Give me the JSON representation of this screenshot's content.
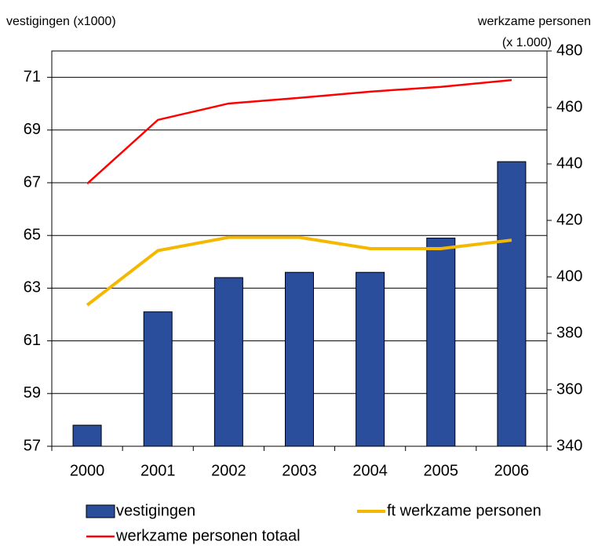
{
  "chart_data": {
    "type": "bar_line",
    "ylabel": "vestigingen (x1000)",
    "y2label": [
      "werkzame personen",
      "(x 1.000)"
    ],
    "categories": [
      "2000",
      "2001",
      "2002",
      "2003",
      "2004",
      "2005",
      "2006"
    ],
    "series": [
      {
        "name": "vestigingen",
        "type": "bar",
        "color": "#2a4d9c",
        "values": [
          57.8,
          62.1,
          63.4,
          63.6,
          63.6,
          64.9,
          67.8
        ]
      },
      {
        "name": "ft werkzame personen",
        "type": "line",
        "axis": "y2",
        "color": "#f5b800",
        "values": [
          390,
          409.3,
          414,
          414,
          410,
          410,
          413
        ]
      },
      {
        "name": "werkzame personen totaal",
        "type": "line",
        "axis": "y2",
        "color": "#ff0000",
        "values": [
          433,
          455.6,
          461.4,
          463.4,
          465.6,
          467.3,
          469.7
        ]
      }
    ],
    "ylim": [
      57,
      72
    ],
    "yticks": [
      57,
      59,
      61,
      63,
      65,
      67,
      69,
      71
    ],
    "y2lim": [
      340,
      480
    ],
    "y2ticks": [
      340,
      360,
      380,
      400,
      420,
      440,
      460,
      480
    ],
    "grid": true,
    "legend": "bottom"
  }
}
